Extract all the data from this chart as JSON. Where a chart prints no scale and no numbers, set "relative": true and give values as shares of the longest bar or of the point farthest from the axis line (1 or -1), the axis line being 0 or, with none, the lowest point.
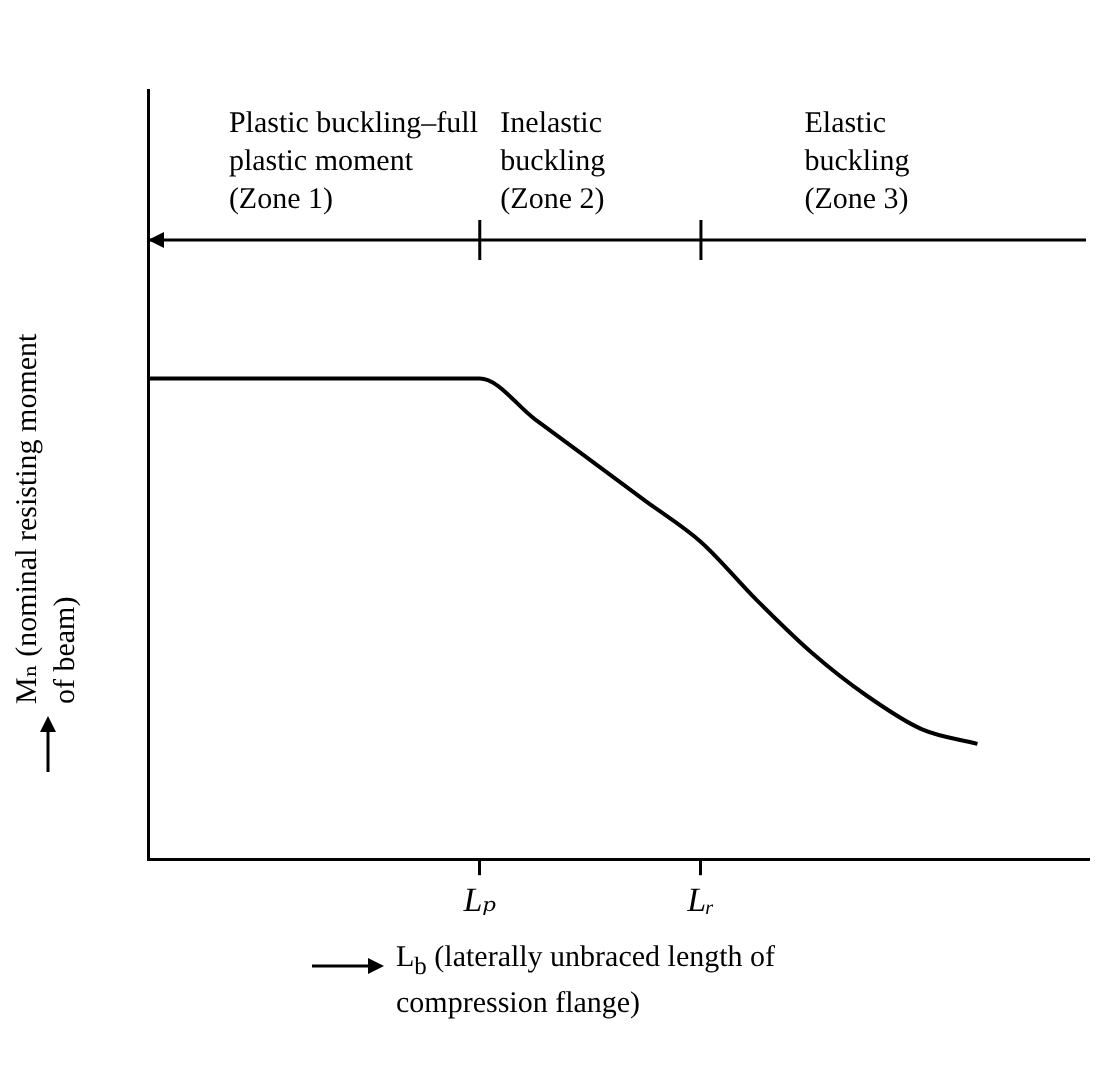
{
  "chart_data": {
    "type": "line",
    "relative": true,
    "legend": false,
    "grid": false,
    "xlabel": "L$_{b}$ (laterally unbraced length of compression flange)",
    "ylabel": "Mₙ (nominal resisting moment of beam)",
    "categories": [
      null,
      null,
      null,
      null,
      null,
      null,
      "Lₚ",
      null,
      null,
      null,
      "Lᵣ",
      null,
      null,
      null,
      null,
      null,
      null,
      null
    ],
    "series": [
      {
        "color": "#000000",
        "values": [
          1,
          1,
          1,
          1,
          1,
          1,
          1,
          0.915,
          0.83,
          0.745,
          0.66,
          0.54,
          0.43,
          0.34,
          0.27,
          0.24,
          null,
          null
        ]
      }
    ],
    "annotations": [
      "Plastic buckling–full plastic moment (Zone 1)",
      "Inelastic buckling (Zone 2)",
      "Elastic buckling (Zone 3)"
    ]
  }
}
